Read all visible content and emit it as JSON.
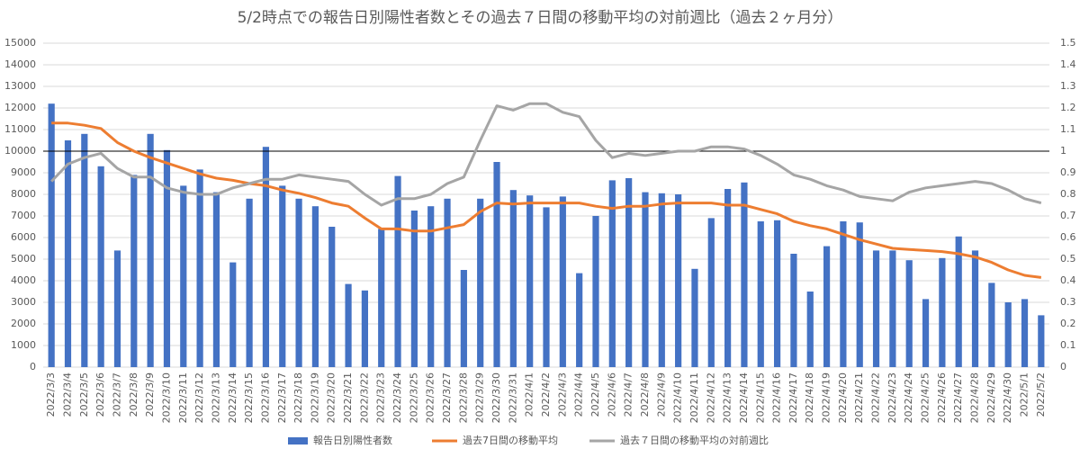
{
  "chart_data": {
    "type": "bar_line",
    "title": "5/2時点での報告日別陽性者数とその過去７日間の移動平均の対前週比（過去２ヶ月分）",
    "categories": [
      "2022/3/3",
      "2022/3/4",
      "2022/3/5",
      "2022/3/6",
      "2022/3/7",
      "2022/3/8",
      "2022/3/9",
      "2022/3/10",
      "2022/3/11",
      "2022/3/12",
      "2022/3/13",
      "2022/3/14",
      "2022/3/15",
      "2022/3/16",
      "2022/3/17",
      "2022/3/18",
      "2022/3/19",
      "2022/3/20",
      "2022/3/21",
      "2022/3/22",
      "2022/3/23",
      "2022/3/24",
      "2022/3/25",
      "2022/3/26",
      "2022/3/27",
      "2022/3/28",
      "2022/3/29",
      "2022/3/30",
      "2022/3/31",
      "2022/4/1",
      "2022/4/2",
      "2022/4/3",
      "2022/4/4",
      "2022/4/5",
      "2022/4/6",
      "2022/4/7",
      "2022/4/8",
      "2022/4/9",
      "2022/4/10",
      "2022/4/11",
      "2022/4/12",
      "2022/4/13",
      "2022/4/14",
      "2022/4/15",
      "2022/4/16",
      "2022/4/17",
      "2022/4/18",
      "2022/4/19",
      "2022/4/20",
      "2022/4/21",
      "2022/4/22",
      "2022/4/23",
      "2022/4/24",
      "2022/4/25",
      "2022/4/26",
      "2022/4/27",
      "2022/4/28",
      "2022/4/29",
      "2022/4/30",
      "2022/5/1",
      "2022/5/2"
    ],
    "series": [
      {
        "name": "報告日別陽性者数",
        "kind": "bar",
        "color": "#4472c4",
        "values": [
          12200,
          10500,
          10800,
          9300,
          5400,
          8900,
          10800,
          10050,
          8400,
          9150,
          8100,
          4850,
          7800,
          10200,
          8400,
          7800,
          7450,
          6500,
          3850,
          3550,
          6400,
          8850,
          7250,
          7450,
          7800,
          4500,
          7800,
          9500,
          8200,
          7950,
          7400,
          7900,
          4350,
          7000,
          8650,
          8750,
          8100,
          8050,
          8000,
          4550,
          6900,
          8250,
          8550,
          6750,
          6800,
          5250,
          3500,
          5600,
          6750,
          6700,
          5400,
          5400,
          4950,
          3150,
          5050,
          6050,
          5400,
          3900,
          3000,
          3150,
          2400
        ]
      },
      {
        "name": "過去7日間の移動平均",
        "kind": "line",
        "color": "#ed7d31",
        "values": [
          11300,
          11300,
          11200,
          11050,
          10400,
          10000,
          9700,
          9450,
          9200,
          8950,
          8750,
          8650,
          8500,
          8400,
          8200,
          8050,
          7850,
          7600,
          7450,
          6900,
          6400,
          6400,
          6300,
          6300,
          6450,
          6600,
          7200,
          7600,
          7550,
          7600,
          7600,
          7600,
          7600,
          7450,
          7350,
          7450,
          7450,
          7550,
          7600,
          7600,
          7600,
          7500,
          7500,
          7300,
          7100,
          6750,
          6550,
          6400,
          6150,
          5900,
          5700,
          5500,
          5450,
          5400,
          5350,
          5250,
          5100,
          4850,
          4500,
          4250,
          4150
        ]
      },
      {
        "name": "過去７日間の移動平均の対前週比",
        "kind": "line",
        "axis": "y2",
        "color": "#a5a5a5",
        "values": [
          0.86,
          0.94,
          0.97,
          0.99,
          0.92,
          0.88,
          0.88,
          0.83,
          0.81,
          0.8,
          0.8,
          0.83,
          0.85,
          0.87,
          0.87,
          0.89,
          0.88,
          0.87,
          0.86,
          0.8,
          0.75,
          0.78,
          0.78,
          0.8,
          0.85,
          0.88,
          1.05,
          1.21,
          1.19,
          1.22,
          1.22,
          1.18,
          1.16,
          1.05,
          0.97,
          0.99,
          0.98,
          0.99,
          1.0,
          1.0,
          1.02,
          1.02,
          1.01,
          0.98,
          0.94,
          0.89,
          0.87,
          0.84,
          0.82,
          0.79,
          0.78,
          0.77,
          0.81,
          0.83,
          0.84,
          0.85,
          0.86,
          0.85,
          0.82,
          0.78,
          0.76
        ]
      }
    ],
    "ylim": [
      0,
      15000
    ],
    "yticks": [
      0,
      1000,
      2000,
      3000,
      4000,
      5000,
      6000,
      7000,
      8000,
      9000,
      10000,
      11000,
      12000,
      13000,
      14000,
      15000
    ],
    "y2lim": [
      0,
      1.5
    ],
    "y2ticks": [
      0,
      0.1,
      0.2,
      0.3,
      0.4,
      0.5,
      0.6,
      0.7,
      0.8,
      0.9,
      1,
      1.1,
      1.2,
      1.3,
      1.4,
      1.5
    ],
    "y2_reference": 1,
    "grid": true,
    "legend": "bottom"
  }
}
